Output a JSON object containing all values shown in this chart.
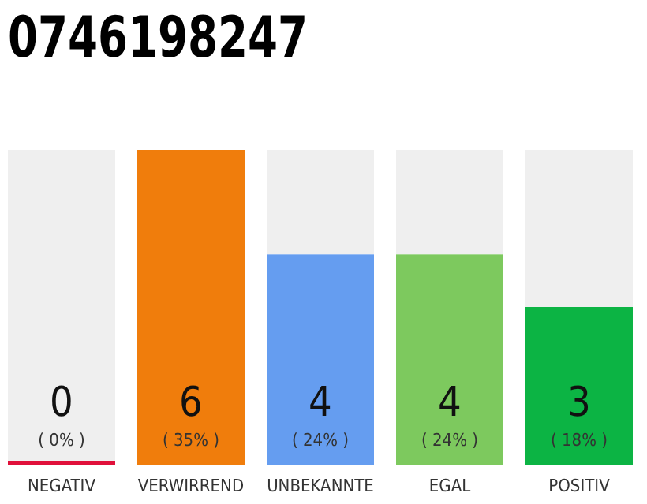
{
  "chart_data": {
    "type": "bar",
    "title": "0746198247",
    "categories": [
      "NEGATIV",
      "VERWIRREND",
      "UNBEKANNTE",
      "EGAL",
      "POSITIV"
    ],
    "values": [
      0,
      6,
      4,
      4,
      3
    ],
    "colors": [
      "#e0103a",
      "#f07d0c",
      "#659df0",
      "#7dc95e",
      "#0cb444"
    ],
    "data_labels": true,
    "annotations": [
      "( 0% )",
      "( 35% )",
      "( 24% )",
      "( 24% )",
      "( 18% )"
    ]
  }
}
